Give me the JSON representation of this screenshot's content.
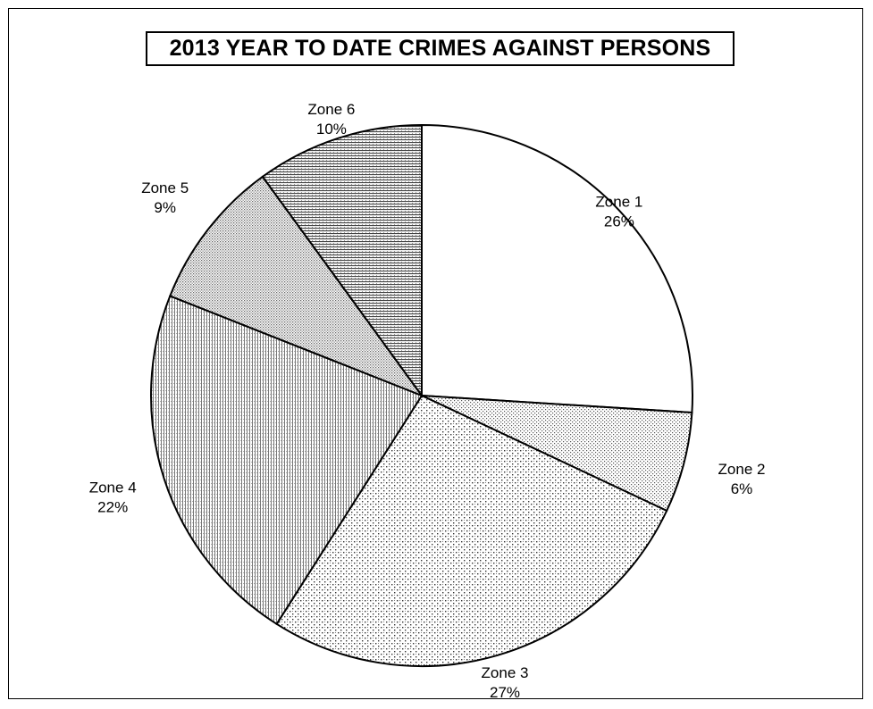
{
  "chart_data": {
    "type": "pie",
    "title": "2013 YEAR TO DATE CRIMES AGAINST PERSONS",
    "categories": [
      "Zone 1",
      "Zone 2",
      "Zone 3",
      "Zone 4",
      "Zone 5",
      "Zone 6"
    ],
    "values": [
      26,
      6,
      27,
      22,
      9,
      10
    ],
    "value_labels": [
      "26%",
      "6%",
      "27%",
      "22%",
      "9%",
      "10%"
    ],
    "start_angle_deg": 0,
    "direction": "clockwise",
    "fill_patterns": [
      "blank",
      "fine-dots",
      "diagonal-stipple",
      "vertical-stipple",
      "dense-dots",
      "horizontal-lines"
    ],
    "legend": "none",
    "label_placement": "outside"
  }
}
